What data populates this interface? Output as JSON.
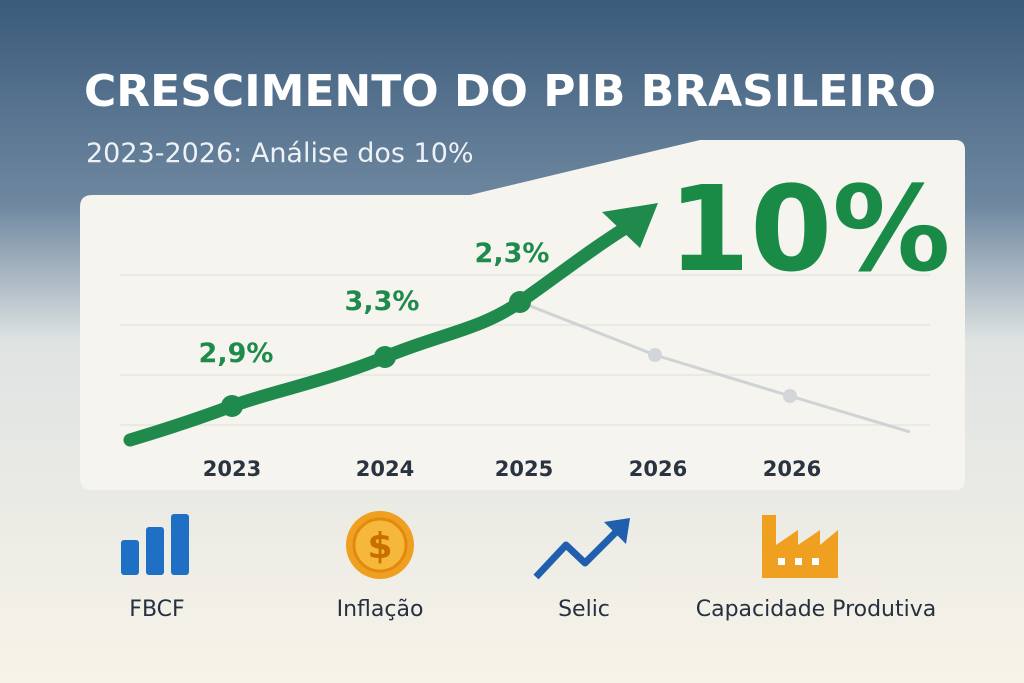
{
  "header": {
    "title": "CRESCIMENTO DO PIB BRASILEIRO",
    "subtitle": "2023-2026: Análise dos 10%"
  },
  "highlight": "10%",
  "chart": {
    "point_labels": [
      "2,9%",
      "3,3%",
      "2,3%"
    ],
    "x_labels": [
      "2023",
      "2024",
      "2025",
      "2026",
      "2026"
    ]
  },
  "indicators": [
    {
      "label": "FBCF"
    },
    {
      "label": "Inflação"
    },
    {
      "label": "Selic"
    },
    {
      "label": "Capacidade Produtiva"
    }
  ]
}
